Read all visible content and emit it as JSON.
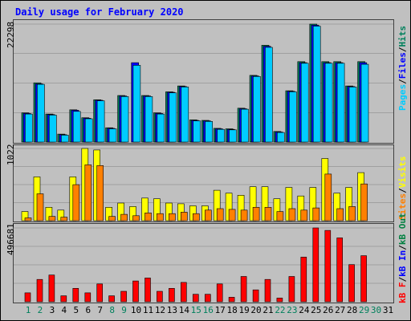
{
  "title": "Daily usage for February 2020",
  "colors": {
    "hits": "#00805c",
    "files": "#0000ff",
    "pages": "#00ccff",
    "visits": "#ffff00",
    "sites": "#ff8000",
    "kbin": "#0000ff",
    "kbout": "#008040",
    "kbf": "#ff0000",
    "weekend_day": "#00805c",
    "weekday_day": "#000000"
  },
  "axis": {
    "top_max": "22298",
    "mid_max": "1022",
    "bottom_max": "496681"
  },
  "legend": {
    "top": [
      {
        "text": "Pages",
        "color": "#00ccff"
      },
      {
        "text": "/",
        "color": "#000000"
      },
      {
        "text": "Files",
        "color": "#0000ff"
      },
      {
        "text": "/",
        "color": "#000000"
      },
      {
        "text": "Hits",
        "color": "#00805c"
      }
    ],
    "mid": [
      {
        "text": "Sites",
        "color": "#ff8000"
      },
      {
        "text": "/",
        "color": "#000000"
      },
      {
        "text": "Visits",
        "color": "#ffff00"
      }
    ],
    "bottom": [
      {
        "text": "kB F",
        "color": "#ff0000"
      },
      {
        "text": "/",
        "color": "#000000"
      },
      {
        "text": "kB In",
        "color": "#0000ff"
      },
      {
        "text": "/",
        "color": "#000000"
      },
      {
        "text": "kB Out",
        "color": "#008040"
      }
    ]
  },
  "days": [
    "1",
    "2",
    "3",
    "4",
    "5",
    "6",
    "7",
    "8",
    "9",
    "10",
    "11",
    "12",
    "13",
    "14",
    "15",
    "16",
    "17",
    "18",
    "19",
    "20",
    "21",
    "22",
    "23",
    "24",
    "25",
    "26",
    "27",
    "28",
    "29",
    "30",
    "31"
  ],
  "weekend_days": [
    1,
    2,
    8,
    9,
    15,
    16,
    22,
    23,
    29,
    30
  ],
  "chart_data": [
    {
      "type": "bar",
      "title": "Daily usage for February 2020",
      "ylim": [
        0,
        22298
      ],
      "categories": [
        "1",
        "2",
        "3",
        "4",
        "5",
        "6",
        "7",
        "8",
        "9",
        "10",
        "11",
        "12",
        "13",
        "14",
        "15",
        "16",
        "17",
        "18",
        "19",
        "20",
        "21",
        "22",
        "23",
        "24",
        "25",
        "26",
        "27",
        "28",
        "29",
        "30",
        "31"
      ],
      "series": [
        {
          "name": "Hits",
          "values": [
            5500,
            11200,
            5300,
            1500,
            6100,
            4600,
            8000,
            2700,
            8800,
            null,
            8800,
            5500,
            9500,
            10600,
            4200,
            4100,
            2600,
            2500,
            6400,
            12600,
            18300,
            2000,
            9700,
            15200,
            22298,
            15200,
            15200,
            10600,
            15200,
            null,
            null
          ]
        },
        {
          "name": "Files",
          "values": [
            5400,
            11000,
            5200,
            1400,
            6000,
            4500,
            7900,
            2600,
            8700,
            15000,
            8700,
            5400,
            9400,
            10500,
            4100,
            4000,
            2500,
            2400,
            6300,
            12500,
            18100,
            1900,
            9600,
            15000,
            22100,
            15000,
            15000,
            10500,
            15000,
            null,
            null
          ]
        },
        {
          "name": "Pages",
          "values": [
            5300,
            10900,
            5100,
            1300,
            5800,
            4400,
            7800,
            2500,
            8600,
            14500,
            8600,
            5300,
            9300,
            10400,
            4000,
            3900,
            2400,
            2300,
            6200,
            12400,
            17900,
            1800,
            9500,
            14900,
            21900,
            14900,
            14900,
            10400,
            14700,
            null,
            null
          ]
        }
      ]
    },
    {
      "type": "bar",
      "ylim": [
        0,
        1022
      ],
      "categories": [
        "1",
        "2",
        "3",
        "4",
        "5",
        "6",
        "7",
        "8",
        "9",
        "10",
        "11",
        "12",
        "13",
        "14",
        "15",
        "16",
        "17",
        "18",
        "19",
        "20",
        "21",
        "22",
        "23",
        "24",
        "25",
        "26",
        "27",
        "28",
        "29",
        "30",
        "31"
      ],
      "series": [
        {
          "name": "Visits",
          "values": [
            130,
            620,
            190,
            150,
            620,
            1022,
            1000,
            190,
            250,
            200,
            320,
            310,
            250,
            240,
            210,
            210,
            430,
            390,
            360,
            480,
            480,
            310,
            470,
            350,
            470,
            880,
            390,
            470,
            680,
            null,
            null
          ]
        },
        {
          "name": "Sites",
          "values": [
            40,
            380,
            60,
            50,
            510,
            790,
            780,
            60,
            90,
            70,
            110,
            100,
            100,
            120,
            100,
            150,
            170,
            160,
            150,
            190,
            190,
            130,
            170,
            150,
            180,
            660,
            170,
            200,
            520,
            null,
            null
          ]
        }
      ]
    },
    {
      "type": "bar",
      "ylim": [
        0,
        496681
      ],
      "categories": [
        "1",
        "2",
        "3",
        "4",
        "5",
        "6",
        "7",
        "8",
        "9",
        "10",
        "11",
        "12",
        "13",
        "14",
        "15",
        "16",
        "17",
        "18",
        "19",
        "20",
        "21",
        "22",
        "23",
        "24",
        "25",
        "26",
        "27",
        "28",
        "29",
        "30",
        "31"
      ],
      "series": [
        {
          "name": "kB F",
          "values": [
            60000,
            150000,
            180000,
            40000,
            90000,
            60000,
            120000,
            40000,
            70000,
            140000,
            160000,
            70000,
            90000,
            130000,
            50000,
            50000,
            120000,
            30000,
            170000,
            80000,
            150000,
            25000,
            170000,
            300000,
            496681,
            480000,
            430000,
            250000,
            310000,
            null,
            null
          ]
        }
      ]
    }
  ]
}
